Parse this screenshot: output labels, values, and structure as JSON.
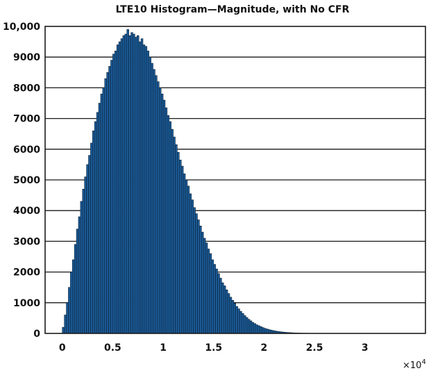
{
  "chart_data": {
    "type": "bar",
    "title": "LTE10 Histogram—Magnitude, with No CFR",
    "xlabel": "",
    "ylabel": "",
    "x_multiplier": "×10",
    "x_multiplier_exp": "4",
    "xlim": [
      -0.17,
      3.6
    ],
    "ylim": [
      0,
      10000
    ],
    "x_ticks": [
      0,
      0.5,
      1,
      1.5,
      2,
      2.5,
      3
    ],
    "x_tick_labels": [
      "0",
      "0.5",
      "1",
      "1.5",
      "2",
      "2.5",
      "3"
    ],
    "y_ticks": [
      0,
      1000,
      2000,
      3000,
      4000,
      5000,
      6000,
      7000,
      8000,
      9000,
      10000
    ],
    "y_tick_labels": [
      "0",
      "1000",
      "2000",
      "3000",
      "4000",
      "5000",
      "6000",
      "7000",
      "8000",
      "9000",
      "10,000"
    ],
    "grid": "horizontal",
    "bin_width": 0.02,
    "bin_start": 0,
    "values": [
      200,
      600,
      1000,
      1500,
      2000,
      2400,
      2900,
      3400,
      3800,
      4300,
      4700,
      5100,
      5500,
      5800,
      6200,
      6600,
      6900,
      7200,
      7500,
      7800,
      8000,
      8300,
      8500,
      8700,
      8900,
      9100,
      9200,
      9400,
      9500,
      9600,
      9700,
      9750,
      9900,
      9700,
      9800,
      9750,
      9650,
      9700,
      9500,
      9600,
      9400,
      9350,
      9200,
      9000,
      8800,
      8600,
      8400,
      8200,
      8000,
      7800,
      7600,
      7350,
      7100,
      6900,
      6650,
      6400,
      6150,
      5900,
      5650,
      5450,
      5200,
      5000,
      4800,
      4550,
      4350,
      4100,
      3900,
      3700,
      3500,
      3300,
      3100,
      2950,
      2750,
      2600,
      2400,
      2250,
      2100,
      1950,
      1800,
      1650,
      1550,
      1420,
      1300,
      1180,
      1080,
      980,
      880,
      800,
      720,
      650,
      580,
      520,
      460,
      410,
      360,
      320,
      280,
      250,
      220,
      190,
      165,
      145,
      125,
      110,
      95,
      82,
      70,
      60,
      52,
      45,
      38,
      32,
      28,
      24,
      20,
      17,
      14,
      12,
      10,
      8,
      7,
      6,
      5,
      4,
      3,
      3,
      2,
      2,
      2,
      1
    ]
  }
}
